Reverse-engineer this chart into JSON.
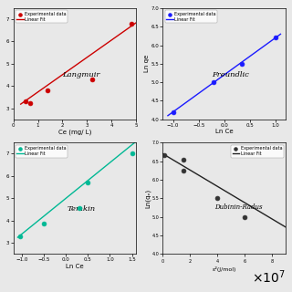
{
  "langmuir": {
    "x_data": [
      0.5,
      0.7,
      1.4,
      3.2,
      4.8
    ],
    "y_data": [
      3.3,
      3.25,
      3.8,
      4.3,
      6.8
    ],
    "fit_x": [
      0.3,
      5.0
    ],
    "fit_slope": 0.78,
    "fit_intercept": 2.95,
    "xlabel": "Ce (mg/ L)",
    "ylabel": "",
    "label": "Langmuir",
    "color": "#cc0000",
    "xlim": [
      0,
      5
    ],
    "ylim": [
      2.5,
      7.5
    ],
    "xticks": [
      0,
      1,
      2,
      3,
      4,
      5
    ]
  },
  "freundlich": {
    "x_data": [
      -1.0,
      -0.2,
      0.35,
      1.0
    ],
    "y_data": [
      4.2,
      5.0,
      5.5,
      6.2
    ],
    "fit_x": [
      -1.1,
      1.1
    ],
    "fit_slope": 1.0,
    "fit_intercept": 5.2,
    "xlabel": "Ln Ce",
    "ylabel": "Ln qe",
    "label": "Freundlic",
    "color": "#0000cc",
    "xlim": [
      -1.2,
      1.2
    ],
    "ylim": [
      4.0,
      7.0
    ],
    "xticks": [
      -1.0,
      -0.5,
      0.0,
      0.5,
      1.0
    ],
    "yticks": [
      4.0,
      4.5,
      5.0,
      5.5,
      6.0,
      6.5,
      7.0
    ]
  },
  "temkin": {
    "x_data": [
      -1.05,
      -0.5,
      0.3,
      0.5,
      1.5
    ],
    "y_data": [
      3.3,
      3.85,
      4.55,
      5.7,
      7.0
    ],
    "fit_x": [
      -1.1,
      1.6
    ],
    "fit_slope": 1.6,
    "fit_intercept": 5.0,
    "xlabel": "Ln Ce",
    "ylabel": "",
    "label": "Temkin",
    "color": "#00aa88",
    "xlim": [
      -1.2,
      1.6
    ],
    "ylim": [
      2.5,
      7.5
    ],
    "xticks": [
      -1.0,
      -0.5,
      0.0,
      0.5,
      1.0,
      1.5
    ]
  },
  "dubinin": {
    "x_data": [
      1000000,
      15000000,
      15000000,
      40000000,
      60000000
    ],
    "y_data": [
      6.65,
      6.55,
      6.25,
      5.5,
      5.0
    ],
    "fit_x": [
      0,
      90000000
    ],
    "fit_slope": -2.2e-08,
    "fit_intercept": 6.7,
    "xlabel": "ε²(J/mol)",
    "ylabel": "Ln(qₑ)",
    "label": "Dubinin-Radus",
    "color": "#222222",
    "xlim": [
      0,
      90000000
    ],
    "ylim": [
      4.0,
      7.0
    ],
    "xticks": [
      0,
      20000000,
      40000000,
      60000000,
      80000000
    ],
    "yticks": [
      4.0,
      4.5,
      5.0,
      5.5,
      6.0,
      6.5,
      7.0
    ]
  },
  "bg_color": "#e8e8e8"
}
